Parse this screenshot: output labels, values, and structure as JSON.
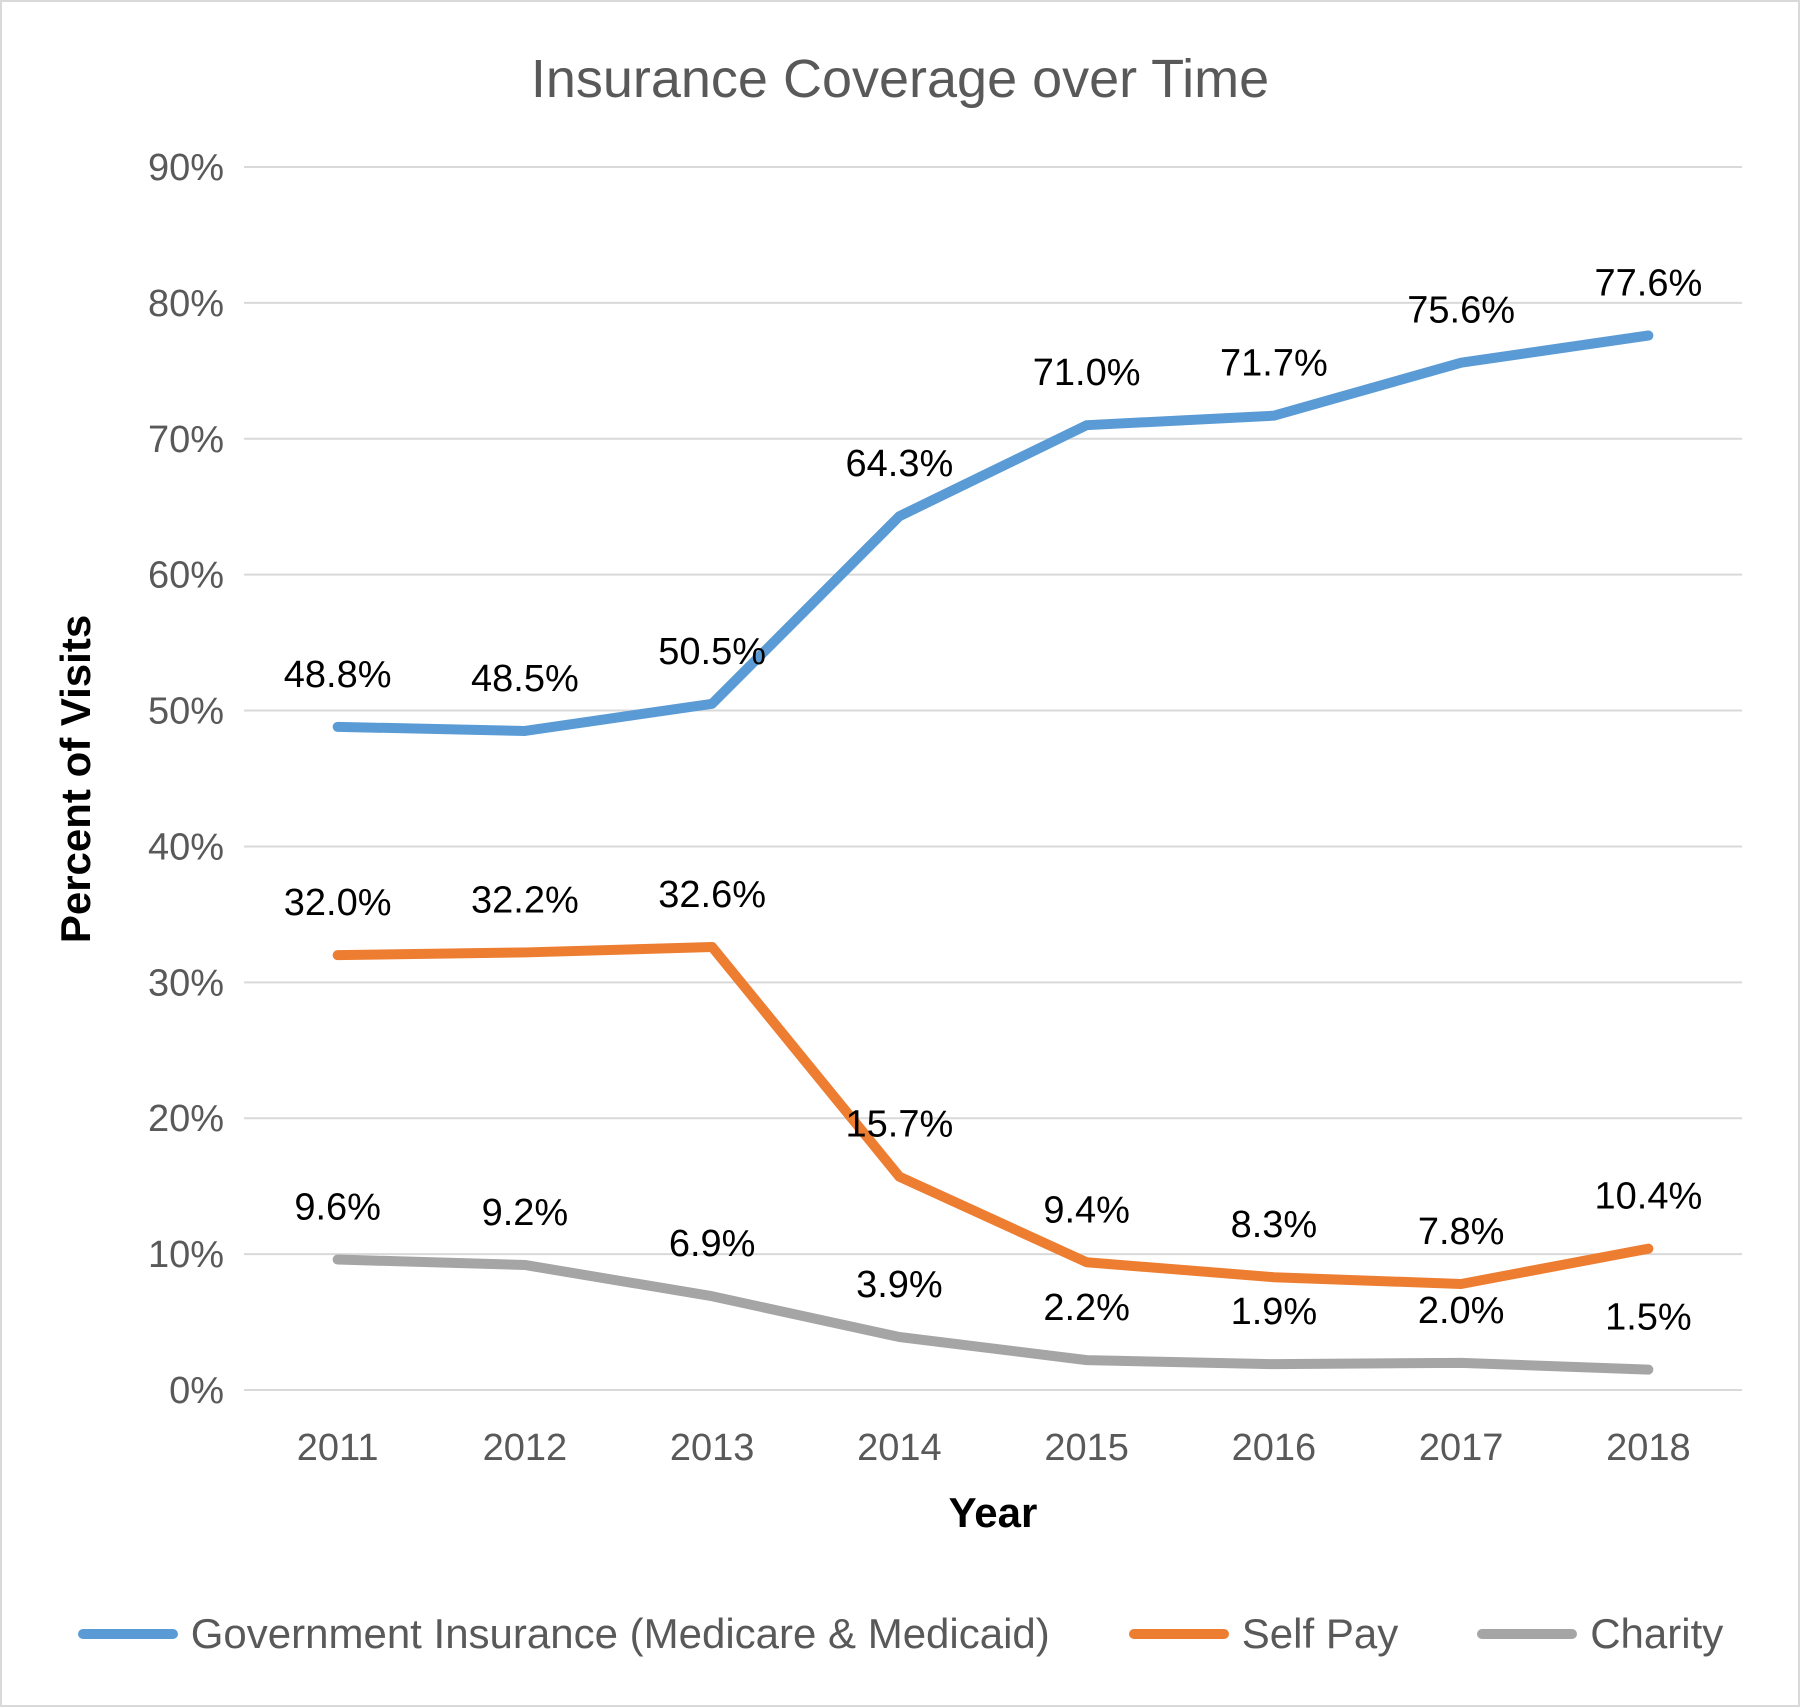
{
  "chart_data": {
    "type": "line",
    "title": "Insurance Coverage over Time",
    "xlabel": "Year",
    "ylabel": "Percent of Visits",
    "categories": [
      "2011",
      "2012",
      "2013",
      "2014",
      "2015",
      "2016",
      "2017",
      "2018"
    ],
    "ylim": [
      0,
      90
    ],
    "ytick_step": 10,
    "ytick_labels": [
      "0%",
      "10%",
      "20%",
      "30%",
      "40%",
      "50%",
      "60%",
      "70%",
      "80%",
      "90%"
    ],
    "grid": true,
    "legend_position": "bottom",
    "series": [
      {
        "name": "Government Insurance (Medicare & Medicaid)",
        "color": "#5B9BD5",
        "values": [
          48.8,
          48.5,
          50.5,
          64.3,
          71.0,
          71.7,
          75.6,
          77.6
        ],
        "labels": [
          "48.8%",
          "48.5%",
          "50.5%",
          "64.3%",
          "71.0%",
          "71.7%",
          "75.6%",
          "77.6%"
        ]
      },
      {
        "name": "Self Pay",
        "color": "#ED7D31",
        "values": [
          32.0,
          32.2,
          32.6,
          15.7,
          9.4,
          8.3,
          7.8,
          10.4
        ],
        "labels": [
          "32.0%",
          "32.2%",
          "32.6%",
          "15.7%",
          "9.4%",
          "8.3%",
          "7.8%",
          "10.4%"
        ]
      },
      {
        "name": "Charity",
        "color": "#A5A5A5",
        "values": [
          9.6,
          9.2,
          6.9,
          3.9,
          2.2,
          1.9,
          2.0,
          1.5
        ],
        "labels": [
          "9.6%",
          "9.2%",
          "6.9%",
          "3.9%",
          "2.2%",
          "1.9%",
          "2.0%",
          "1.5%"
        ]
      }
    ]
  },
  "colors": {
    "gridline": "#D9D9D9",
    "axis_text": "#595959",
    "title_text": "#595959",
    "axis_title_text": "#000000",
    "data_label_text": "#000000",
    "border": "#D9D9D9"
  }
}
